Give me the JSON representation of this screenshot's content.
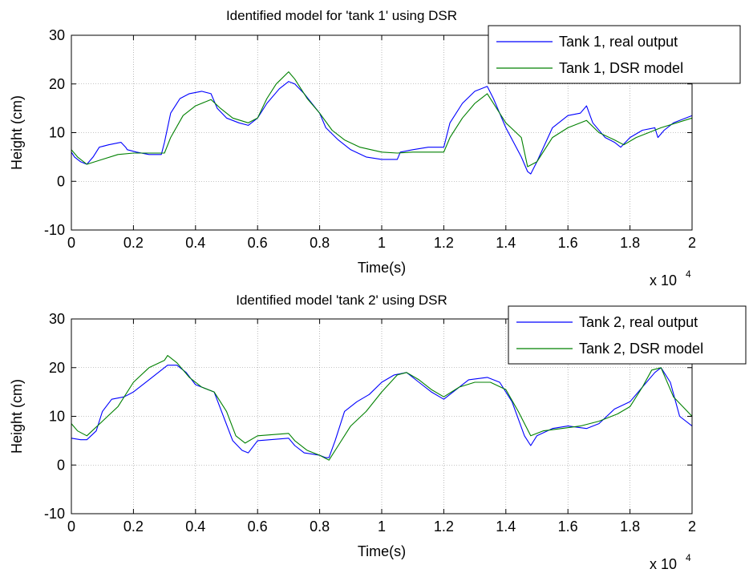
{
  "chart_data": [
    {
      "type": "line",
      "title": "Identified model for 'tank 1' using DSR",
      "xlabel": "Time(s)",
      "ylabel": "Height (cm)",
      "x_multiplier_label": "x 10",
      "x_multiplier_exponent": "4",
      "xlim": [
        0,
        2
      ],
      "ylim": [
        -10,
        30
      ],
      "xticks": [
        0,
        0.2,
        0.4,
        0.6,
        0.8,
        1,
        1.2,
        1.4,
        1.6,
        1.8,
        2
      ],
      "xtick_labels": [
        "0",
        "0.2",
        "0.4",
        "0.6",
        "0.8",
        "1",
        "1.2",
        "1.4",
        "1.6",
        "1.8",
        "2"
      ],
      "yticks": [
        -10,
        0,
        10,
        20,
        30
      ],
      "ytick_labels": [
        "-10",
        "0",
        "10",
        "20",
        "30"
      ],
      "grid": true,
      "legend_position": "top-right",
      "series": [
        {
          "name": "Tank 1, real output",
          "color": "#0000ff",
          "x": [
            0,
            0.01,
            0.03,
            0.05,
            0.07,
            0.09,
            0.12,
            0.16,
            0.175,
            0.18,
            0.21,
            0.25,
            0.29,
            0.3,
            0.32,
            0.35,
            0.38,
            0.42,
            0.45,
            0.47,
            0.5,
            0.54,
            0.57,
            0.6,
            0.63,
            0.67,
            0.7,
            0.72,
            0.75,
            0.8,
            0.82,
            0.86,
            0.9,
            0.95,
            1,
            1.05,
            1.06,
            1.1,
            1.15,
            1.2,
            1.22,
            1.26,
            1.3,
            1.34,
            1.36,
            1.4,
            1.45,
            1.47,
            1.48,
            1.5,
            1.55,
            1.6,
            1.64,
            1.66,
            1.68,
            1.72,
            1.75,
            1.77,
            1.8,
            1.84,
            1.88,
            1.89,
            1.91,
            1.94,
            2
          ],
          "y": [
            6,
            5,
            4,
            3.5,
            5,
            7,
            7.5,
            8,
            7,
            6.5,
            6,
            5.5,
            5.5,
            8,
            14,
            17,
            18,
            18.5,
            18,
            15,
            13,
            12,
            11.5,
            13,
            16,
            19,
            20.5,
            20,
            18,
            14,
            11,
            8.5,
            6.5,
            5,
            4.5,
            4.5,
            6,
            6.5,
            7,
            7,
            12,
            16,
            18.5,
            19.5,
            17,
            11,
            5,
            2,
            1.5,
            4,
            11,
            13.5,
            14,
            15.5,
            12,
            9,
            8,
            7,
            9,
            10.5,
            11,
            9,
            10.5,
            12,
            13.5
          ]
        },
        {
          "name": "Tank 1, DSR model",
          "color": "#008000",
          "x": [
            0,
            0.02,
            0.05,
            0.1,
            0.15,
            0.2,
            0.25,
            0.3,
            0.32,
            0.36,
            0.4,
            0.45,
            0.48,
            0.52,
            0.57,
            0.6,
            0.63,
            0.66,
            0.7,
            0.72,
            0.76,
            0.8,
            0.84,
            0.88,
            0.93,
            1,
            1.05,
            1.1,
            1.2,
            1.22,
            1.26,
            1.3,
            1.34,
            1.36,
            1.4,
            1.45,
            1.47,
            1.5,
            1.55,
            1.6,
            1.66,
            1.7,
            1.75,
            1.78,
            1.82,
            1.9,
            2
          ],
          "y": [
            6.5,
            5,
            3.5,
            4.5,
            5.5,
            5.8,
            5.8,
            5.8,
            9,
            13.5,
            15.5,
            16.8,
            15,
            13,
            12,
            13,
            17,
            20,
            22.5,
            21,
            17,
            14,
            10.5,
            8.5,
            7,
            6,
            5.8,
            6,
            6,
            9,
            13,
            16,
            18,
            16,
            12,
            9,
            3,
            4,
            9,
            11,
            12.5,
            10,
            8.5,
            7.5,
            9,
            11,
            13
          ]
        }
      ]
    },
    {
      "type": "line",
      "title": "Identified model 'tank 2' using DSR",
      "xlabel": "Time(s)",
      "ylabel": "Height (cm)",
      "x_multiplier_label": "x 10",
      "x_multiplier_exponent": "4",
      "xlim": [
        0,
        2
      ],
      "ylim": [
        -10,
        30
      ],
      "xticks": [
        0,
        0.2,
        0.4,
        0.6,
        0.8,
        1,
        1.2,
        1.4,
        1.6,
        1.8,
        2
      ],
      "xtick_labels": [
        "0",
        "0.2",
        "0.4",
        "0.6",
        "0.8",
        "1",
        "1.2",
        "1.4",
        "1.6",
        "1.8",
        "2"
      ],
      "yticks": [
        -10,
        0,
        10,
        20,
        30
      ],
      "ytick_labels": [
        "-10",
        "0",
        "10",
        "20",
        "30"
      ],
      "grid": true,
      "legend_position": "top-right",
      "series": [
        {
          "name": "Tank 2, real output",
          "color": "#0000ff",
          "x": [
            0,
            0.03,
            0.05,
            0.08,
            0.1,
            0.13,
            0.17,
            0.2,
            0.25,
            0.29,
            0.31,
            0.34,
            0.37,
            0.4,
            0.44,
            0.46,
            0.49,
            0.52,
            0.55,
            0.57,
            0.6,
            0.7,
            0.72,
            0.75,
            0.8,
            0.82,
            0.83,
            0.85,
            0.88,
            0.92,
            0.96,
            1,
            1.04,
            1.08,
            1.12,
            1.16,
            1.2,
            1.24,
            1.28,
            1.34,
            1.38,
            1.42,
            1.46,
            1.48,
            1.5,
            1.55,
            1.6,
            1.66,
            1.7,
            1.75,
            1.8,
            1.84,
            1.88,
            1.9,
            1.93,
            1.96,
            2
          ],
          "y": [
            5.5,
            5.2,
            5.2,
            7,
            11,
            13.5,
            14,
            15,
            17.5,
            19.5,
            20.5,
            20.5,
            19,
            16.5,
            15.5,
            15,
            10,
            5,
            3,
            2.5,
            5,
            5.5,
            4,
            2.5,
            2,
            1.5,
            1.5,
            5,
            11,
            13,
            14.5,
            17,
            18.5,
            19,
            17,
            15,
            13.5,
            15.5,
            17.5,
            18,
            17,
            13,
            6,
            4,
            6,
            7.5,
            8,
            7.5,
            8.5,
            11.5,
            13,
            16,
            19,
            20,
            17,
            10,
            8
          ]
        },
        {
          "name": "Tank 2, DSR model",
          "color": "#008000",
          "x": [
            0,
            0.02,
            0.05,
            0.1,
            0.15,
            0.2,
            0.25,
            0.3,
            0.31,
            0.34,
            0.38,
            0.42,
            0.46,
            0.5,
            0.53,
            0.56,
            0.6,
            0.7,
            0.72,
            0.76,
            0.8,
            0.83,
            0.86,
            0.9,
            0.95,
            1,
            1.05,
            1.08,
            1.12,
            1.16,
            1.2,
            1.25,
            1.3,
            1.35,
            1.4,
            1.44,
            1.48,
            1.52,
            1.58,
            1.64,
            1.7,
            1.76,
            1.8,
            1.84,
            1.87,
            1.9,
            1.94,
            2
          ],
          "y": [
            8.5,
            7,
            6,
            9,
            12,
            17,
            20,
            21.5,
            22.5,
            21,
            18,
            16,
            15,
            11,
            6,
            4.5,
            6,
            6.5,
            5,
            3,
            2,
            1,
            4,
            8,
            11,
            15,
            18.5,
            19,
            17.5,
            15.5,
            14,
            16,
            17,
            17,
            15.5,
            11,
            6,
            7,
            7.5,
            8,
            9,
            10.5,
            12,
            16,
            19.5,
            20,
            14,
            10
          ]
        }
      ]
    }
  ]
}
